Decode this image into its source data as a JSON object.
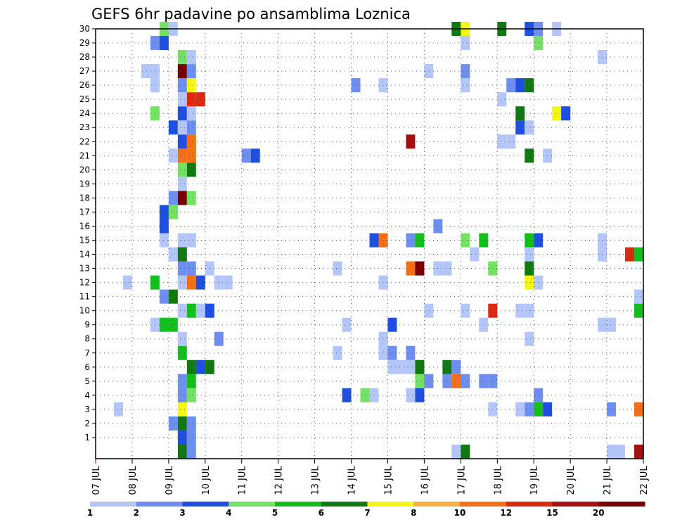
{
  "chart_data": {
    "type": "heatmap",
    "title": "GEFS 6hr padavine po ansamblima Loznica",
    "xlabel": "",
    "ylabel": "",
    "x_ticks": [
      "07 JUL",
      "08 JUL",
      "09 JUL",
      "10 JUL",
      "11 JUL",
      "12 JUL",
      "13 JUL",
      "14 JUL",
      "15 JUL",
      "16 JUL",
      "17 JUL",
      "18 JUL",
      "19 JUL",
      "20 JUL",
      "21 JUL",
      "22 JUL"
    ],
    "xlim": [
      0,
      15
    ],
    "y_ticks": [
      1,
      2,
      3,
      4,
      5,
      6,
      7,
      8,
      9,
      10,
      11,
      12,
      13,
      14,
      15,
      16,
      17,
      18,
      19,
      20,
      21,
      22,
      23,
      24,
      25,
      26,
      27,
      28,
      29,
      30
    ],
    "ylim": [
      0,
      30
    ],
    "grid": true,
    "time_step_days": 0.25,
    "legend": {
      "labels": [
        "1",
        "2",
        "3",
        "4",
        "5",
        "6",
        "7",
        "8",
        "10",
        "12",
        "15",
        "20"
      ],
      "colors": [
        "#b3c6f7",
        "#6e8ff0",
        "#1e4fe0",
        "#74e064",
        "#14be1e",
        "#127812",
        "#f6f614",
        "#f8b040",
        "#f37018",
        "#db2a10",
        "#a51010",
        "#780000"
      ],
      "placement": "bottom"
    },
    "cells": [
      {
        "member": 0,
        "time": 2.25,
        "class": 6
      },
      {
        "member": 0,
        "time": 2.5,
        "class": 2
      },
      {
        "member": 0,
        "time": 9.75,
        "class": 1
      },
      {
        "member": 0,
        "time": 10,
        "class": 6
      },
      {
        "member": 0,
        "time": 14,
        "class": 1
      },
      {
        "member": 0,
        "time": 14.25,
        "class": 1
      },
      {
        "member": 0,
        "time": 14.75,
        "class": 11
      },
      {
        "member": 1,
        "time": 2.25,
        "class": 3
      },
      {
        "member": 1,
        "time": 2.5,
        "class": 2
      },
      {
        "member": 2,
        "time": 2,
        "class": 2
      },
      {
        "member": 2,
        "time": 2.25,
        "class": 6
      },
      {
        "member": 2,
        "time": 2.5,
        "class": 2
      },
      {
        "member": 3,
        "time": 0.5,
        "class": 1
      },
      {
        "member": 3,
        "time": 2.25,
        "class": 7
      },
      {
        "member": 3,
        "time": 10.75,
        "class": 1
      },
      {
        "member": 3,
        "time": 11.5,
        "class": 1
      },
      {
        "member": 3,
        "time": 11.75,
        "class": 2
      },
      {
        "member": 3,
        "time": 12,
        "class": 5
      },
      {
        "member": 3,
        "time": 12.25,
        "class": 3
      },
      {
        "member": 3,
        "time": 14,
        "class": 2
      },
      {
        "member": 3,
        "time": 14.75,
        "class": 9
      },
      {
        "member": 3,
        "time": 15,
        "class": 1
      },
      {
        "member": 4,
        "time": 2.25,
        "class": 2
      },
      {
        "member": 4,
        "time": 2.5,
        "class": 4
      },
      {
        "member": 4,
        "time": 6.75,
        "class": 3
      },
      {
        "member": 4,
        "time": 7.25,
        "class": 4
      },
      {
        "member": 4,
        "time": 7.5,
        "class": 1
      },
      {
        "member": 4,
        "time": 8.5,
        "class": 1
      },
      {
        "member": 4,
        "time": 8.75,
        "class": 3
      },
      {
        "member": 4,
        "time": 12,
        "class": 2
      },
      {
        "member": 5,
        "time": 2.25,
        "class": 2
      },
      {
        "member": 5,
        "time": 2.5,
        "class": 5
      },
      {
        "member": 5,
        "time": 8.75,
        "class": 4
      },
      {
        "member": 5,
        "time": 9,
        "class": 2
      },
      {
        "member": 5,
        "time": 9.5,
        "class": 2
      },
      {
        "member": 5,
        "time": 9.75,
        "class": 9
      },
      {
        "member": 5,
        "time": 10,
        "class": 2
      },
      {
        "member": 5,
        "time": 10.5,
        "class": 2
      },
      {
        "member": 5,
        "time": 10.75,
        "class": 2
      },
      {
        "member": 6,
        "time": 2.5,
        "class": 6
      },
      {
        "member": 6,
        "time": 2.75,
        "class": 3
      },
      {
        "member": 6,
        "time": 3,
        "class": 6
      },
      {
        "member": 6,
        "time": 8,
        "class": 1
      },
      {
        "member": 6,
        "time": 8.25,
        "class": 1
      },
      {
        "member": 6,
        "time": 8.5,
        "class": 1
      },
      {
        "member": 6,
        "time": 8.75,
        "class": 6
      },
      {
        "member": 6,
        "time": 9.5,
        "class": 6
      },
      {
        "member": 6,
        "time": 9.75,
        "class": 2
      },
      {
        "member": 7,
        "time": 2.25,
        "class": 5
      },
      {
        "member": 7,
        "time": 6.5,
        "class": 1
      },
      {
        "member": 7,
        "time": 7.75,
        "class": 1
      },
      {
        "member": 7,
        "time": 8,
        "class": 2
      },
      {
        "member": 7,
        "time": 8.5,
        "class": 2
      },
      {
        "member": 7,
        "time": 15,
        "class": 3
      },
      {
        "member": 8,
        "time": 2.25,
        "class": 1
      },
      {
        "member": 8,
        "time": 3.25,
        "class": 2
      },
      {
        "member": 8,
        "time": 7.75,
        "class": 1
      },
      {
        "member": 8,
        "time": 11.75,
        "class": 1
      },
      {
        "member": 9,
        "time": 1.5,
        "class": 1
      },
      {
        "member": 9,
        "time": 1.75,
        "class": 5
      },
      {
        "member": 9,
        "time": 2,
        "class": 5
      },
      {
        "member": 9,
        "time": 6.75,
        "class": 1
      },
      {
        "member": 9,
        "time": 8,
        "class": 3
      },
      {
        "member": 9,
        "time": 10.5,
        "class": 1
      },
      {
        "member": 9,
        "time": 13.75,
        "class": 1
      },
      {
        "member": 9,
        "time": 14,
        "class": 1
      },
      {
        "member": 10,
        "time": 2.25,
        "class": 1
      },
      {
        "member": 10,
        "time": 2.5,
        "class": 5
      },
      {
        "member": 10,
        "time": 2.75,
        "class": 1
      },
      {
        "member": 10,
        "time": 3,
        "class": 3
      },
      {
        "member": 10,
        "time": 9,
        "class": 1
      },
      {
        "member": 10,
        "time": 10,
        "class": 1
      },
      {
        "member": 10,
        "time": 10.75,
        "class": 10
      },
      {
        "member": 10,
        "time": 11.5,
        "class": 1
      },
      {
        "member": 10,
        "time": 11.75,
        "class": 1
      },
      {
        "member": 10,
        "time": 14.75,
        "class": 5
      },
      {
        "member": 11,
        "time": 1.75,
        "class": 2
      },
      {
        "member": 11,
        "time": 2,
        "class": 6
      },
      {
        "member": 11,
        "time": 14.75,
        "class": 1
      },
      {
        "member": 11,
        "time": 15.25,
        "class": 3
      },
      {
        "member": 12,
        "time": 0.75,
        "class": 1
      },
      {
        "member": 12,
        "time": 1.5,
        "class": 5
      },
      {
        "member": 12,
        "time": 2.25,
        "class": 1
      },
      {
        "member": 12,
        "time": 2.5,
        "class": 9
      },
      {
        "member": 12,
        "time": 2.75,
        "class": 3
      },
      {
        "member": 12,
        "time": 3.25,
        "class": 1
      },
      {
        "member": 12,
        "time": 3.5,
        "class": 1
      },
      {
        "member": 12,
        "time": 7.75,
        "class": 1
      },
      {
        "member": 12,
        "time": 11.75,
        "class": 7
      },
      {
        "member": 12,
        "time": 12,
        "class": 1
      },
      {
        "member": 13,
        "time": 2.25,
        "class": 2
      },
      {
        "member": 13,
        "time": 2.5,
        "class": 2
      },
      {
        "member": 13,
        "time": 3,
        "class": 1
      },
      {
        "member": 13,
        "time": 6.5,
        "class": 1
      },
      {
        "member": 13,
        "time": 8.5,
        "class": 9
      },
      {
        "member": 13,
        "time": 8.75,
        "class": 12
      },
      {
        "member": 13,
        "time": 9.25,
        "class": 1
      },
      {
        "member": 13,
        "time": 9.5,
        "class": 1
      },
      {
        "member": 13,
        "time": 10.75,
        "class": 4
      },
      {
        "member": 13,
        "time": 11.75,
        "class": 6
      },
      {
        "member": 14,
        "time": 2,
        "class": 1
      },
      {
        "member": 14,
        "time": 2.25,
        "class": 6
      },
      {
        "member": 14,
        "time": 10.25,
        "class": 1
      },
      {
        "member": 14,
        "time": 11.75,
        "class": 1
      },
      {
        "member": 14,
        "time": 13.75,
        "class": 1
      },
      {
        "member": 14,
        "time": 14.5,
        "class": 10
      },
      {
        "member": 14,
        "time": 14.75,
        "class": 5
      },
      {
        "member": 14,
        "time": 15.25,
        "class": 3
      },
      {
        "member": 15,
        "time": 1.75,
        "class": 1
      },
      {
        "member": 15,
        "time": 2.25,
        "class": 1
      },
      {
        "member": 15,
        "time": 2.5,
        "class": 1
      },
      {
        "member": 15,
        "time": 7.5,
        "class": 3
      },
      {
        "member": 15,
        "time": 7.75,
        "class": 9
      },
      {
        "member": 15,
        "time": 8.5,
        "class": 2
      },
      {
        "member": 15,
        "time": 8.75,
        "class": 5
      },
      {
        "member": 15,
        "time": 10,
        "class": 4
      },
      {
        "member": 15,
        "time": 10.5,
        "class": 5
      },
      {
        "member": 15,
        "time": 11.75,
        "class": 5
      },
      {
        "member": 15,
        "time": 12,
        "class": 3
      },
      {
        "member": 15,
        "time": 13.75,
        "class": 1
      },
      {
        "member": 16,
        "time": 1.75,
        "class": 3
      },
      {
        "member": 16,
        "time": 9.25,
        "class": 2
      },
      {
        "member": 17,
        "time": 1.75,
        "class": 3
      },
      {
        "member": 17,
        "time": 2,
        "class": 4
      },
      {
        "member": 18,
        "time": 2,
        "class": 2
      },
      {
        "member": 18,
        "time": 2.25,
        "class": 12
      },
      {
        "member": 18,
        "time": 2.5,
        "class": 4
      },
      {
        "member": 19,
        "time": 2.25,
        "class": 1
      },
      {
        "member": 20,
        "time": 2.25,
        "class": 4
      },
      {
        "member": 20,
        "time": 2.5,
        "class": 6
      },
      {
        "member": 20,
        "time": 15,
        "class": 1
      },
      {
        "member": 21,
        "time": 2,
        "class": 1
      },
      {
        "member": 21,
        "time": 2.25,
        "class": 9
      },
      {
        "member": 21,
        "time": 2.5,
        "class": 9
      },
      {
        "member": 21,
        "time": 4,
        "class": 2
      },
      {
        "member": 21,
        "time": 4.25,
        "class": 3
      },
      {
        "member": 21,
        "time": 11.75,
        "class": 6
      },
      {
        "member": 21,
        "time": 12.25,
        "class": 1
      },
      {
        "member": 22,
        "time": 2.25,
        "class": 3
      },
      {
        "member": 22,
        "time": 2.5,
        "class": 9
      },
      {
        "member": 22,
        "time": 8.5,
        "class": 11
      },
      {
        "member": 22,
        "time": 11,
        "class": 1
      },
      {
        "member": 22,
        "time": 11.25,
        "class": 1
      },
      {
        "member": 23,
        "time": 2,
        "class": 3
      },
      {
        "member": 23,
        "time": 2.25,
        "class": 1
      },
      {
        "member": 23,
        "time": 2.5,
        "class": 2
      },
      {
        "member": 23,
        "time": 11.5,
        "class": 3
      },
      {
        "member": 23,
        "time": 11.75,
        "class": 1
      },
      {
        "member": 24,
        "time": 1.5,
        "class": 4
      },
      {
        "member": 24,
        "time": 2.25,
        "class": 3
      },
      {
        "member": 24,
        "time": 2.5,
        "class": 1
      },
      {
        "member": 24,
        "time": 11.5,
        "class": 6
      },
      {
        "member": 24,
        "time": 12.5,
        "class": 7
      },
      {
        "member": 24,
        "time": 12.75,
        "class": 3
      },
      {
        "member": 25,
        "time": 2.25,
        "class": 1
      },
      {
        "member": 25,
        "time": 2.5,
        "class": 10
      },
      {
        "member": 25,
        "time": 2.75,
        "class": 10
      },
      {
        "member": 25,
        "time": 11,
        "class": 1
      },
      {
        "member": 26,
        "time": 1.5,
        "class": 1
      },
      {
        "member": 26,
        "time": 2.25,
        "class": 2
      },
      {
        "member": 26,
        "time": 2.5,
        "class": 7
      },
      {
        "member": 26,
        "time": 7,
        "class": 2
      },
      {
        "member": 26,
        "time": 7.75,
        "class": 1
      },
      {
        "member": 26,
        "time": 10,
        "class": 1
      },
      {
        "member": 26,
        "time": 11.25,
        "class": 2
      },
      {
        "member": 26,
        "time": 11.5,
        "class": 3
      },
      {
        "member": 26,
        "time": 11.75,
        "class": 6
      },
      {
        "member": 27,
        "time": 1.25,
        "class": 1
      },
      {
        "member": 27,
        "time": 1.5,
        "class": 1
      },
      {
        "member": 27,
        "time": 2.25,
        "class": 12
      },
      {
        "member": 27,
        "time": 2.5,
        "class": 2
      },
      {
        "member": 27,
        "time": 9,
        "class": 1
      },
      {
        "member": 27,
        "time": 10,
        "class": 2
      },
      {
        "member": 27,
        "time": 15,
        "class": 3
      },
      {
        "member": 28,
        "time": 2.25,
        "class": 4
      },
      {
        "member": 28,
        "time": 2.5,
        "class": 1
      },
      {
        "member": 28,
        "time": 13.75,
        "class": 1
      },
      {
        "member": 29,
        "time": 1.5,
        "class": 2
      },
      {
        "member": 29,
        "time": 1.75,
        "class": 3
      },
      {
        "member": 29,
        "time": 10,
        "class": 1
      },
      {
        "member": 29,
        "time": 12,
        "class": 4
      },
      {
        "member": 30,
        "time": 1.75,
        "class": 4
      },
      {
        "member": 30,
        "time": 2,
        "class": 1
      },
      {
        "member": 30,
        "time": 9.75,
        "class": 6
      },
      {
        "member": 30,
        "time": 10,
        "class": 7
      },
      {
        "member": 30,
        "time": 11,
        "class": 6
      },
      {
        "member": 30,
        "time": 11.75,
        "class": 3
      },
      {
        "member": 30,
        "time": 12,
        "class": 2
      },
      {
        "member": 30,
        "time": 12.5,
        "class": 1
      }
    ]
  }
}
